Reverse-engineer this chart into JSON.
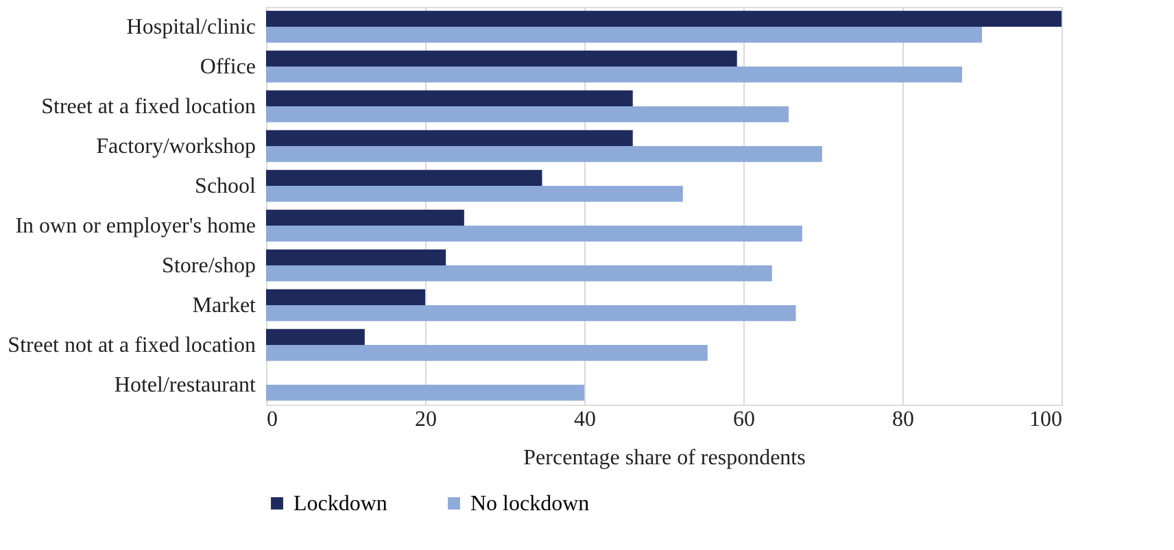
{
  "chart_data": {
    "type": "bar",
    "orientation": "horizontal",
    "categories": [
      "Hospital/clinic",
      "Office",
      "Street at a fixed location",
      "Factory/workshop",
      "School",
      "In own or employer's home",
      "Store/shop",
      "Market",
      "Street not at a fixed location",
      "Hotel/restaurant"
    ],
    "series": [
      {
        "name": "Lockdown",
        "color": "#1f2a5c",
        "values": [
          100,
          59.2,
          46.1,
          46.1,
          34.7,
          24.9,
          22.6,
          20,
          12.4,
          0
        ]
      },
      {
        "name": "No lockdown",
        "color": "#8eaad8",
        "values": [
          90,
          87.5,
          65.7,
          69.9,
          52.4,
          67.4,
          63.6,
          66.6,
          55.5,
          40
        ]
      }
    ],
    "xlabel": "Percentage share of respondents",
    "xlim": [
      0,
      100
    ],
    "xticks": [
      0,
      20,
      40,
      60,
      80,
      100
    ],
    "grid": "x",
    "legend": "bottom"
  }
}
